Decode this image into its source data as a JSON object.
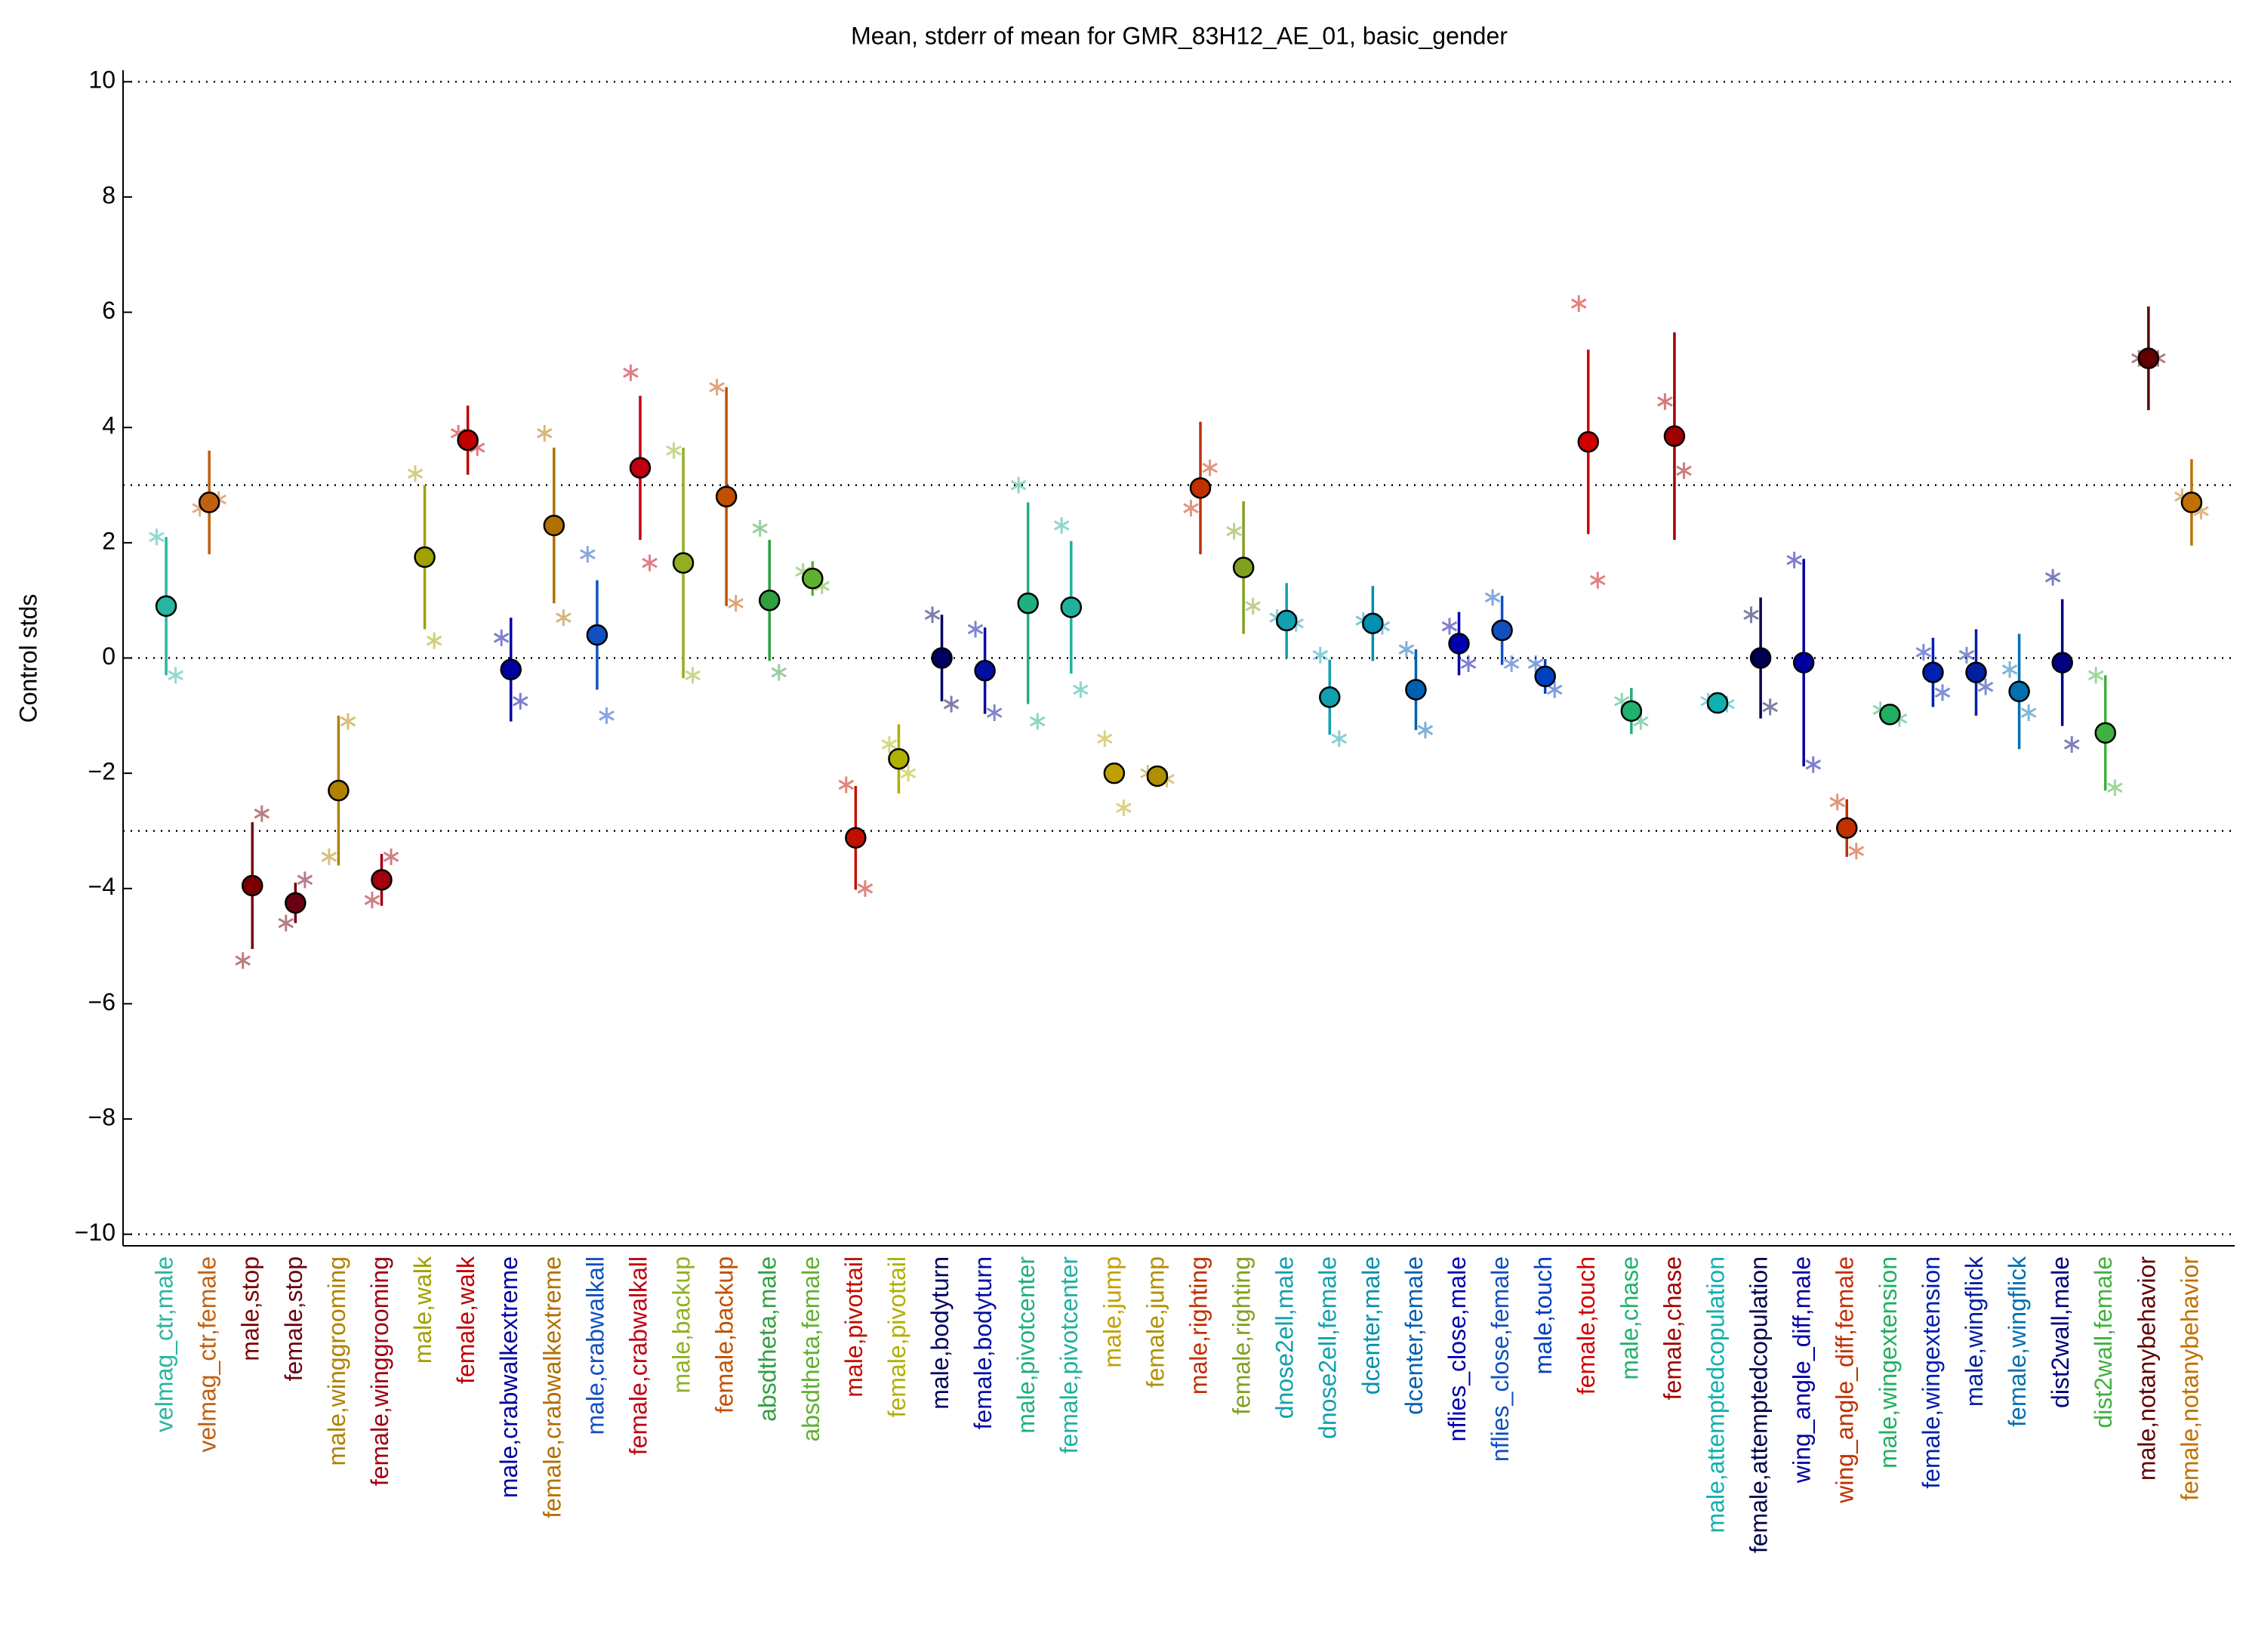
{
  "chart_data": {
    "type": "errorbar",
    "title": "Mean, stderr of mean for GMR_83H12_AE_01, basic_gender",
    "ylabel": "Control stds",
    "ylim": [
      -10.2,
      10.2
    ],
    "yticks": [
      {
        "value": -10,
        "label": "−10"
      },
      {
        "value": -8,
        "label": "−8"
      },
      {
        "value": -6,
        "label": "−6"
      },
      {
        "value": -4,
        "label": "−4"
      },
      {
        "value": -2,
        "label": "−2"
      },
      0,
      2,
      4,
      6,
      8,
      10
    ],
    "reference_lines": [
      -10,
      -3,
      0,
      3,
      10
    ],
    "categories": [
      "velmag_ctr,male",
      "velmag_ctr,female",
      "male,stop",
      "female,stop",
      "male,winggrooming",
      "female,winggrooming",
      "male,walk",
      "female,walk",
      "male,crabwalkextreme",
      "female,crabwalkextreme",
      "male,crabwalkall",
      "female,crabwalkall",
      "male,backup",
      "female,backup",
      "absdtheta,male",
      "absdtheta,female",
      "male,pivottail",
      "female,pivottail",
      "male,bodyturn",
      "female,bodyturn",
      "male,pivotcenter",
      "female,pivotcenter",
      "male,jump",
      "female,jump",
      "male,righting",
      "female,righting",
      "dnose2ell,male",
      "dnose2ell,female",
      "dcenter,male",
      "dcenter,female",
      "nflies_close,male",
      "nflies_close,female",
      "male,touch",
      "female,touch",
      "male,chase",
      "female,chase",
      "male,attemptedcopulation",
      "female,attemptedcopulation",
      "wing_angle_diff,male",
      "wing_angle_diff,female",
      "male,wingextension",
      "female,wingextension",
      "male,wingflick",
      "female,wingflick",
      "dist2wall,male",
      "dist2wall,female",
      "male,notanybehavior",
      "female,notanybehavior"
    ],
    "values": [
      0.9,
      2.7,
      -3.95,
      -4.25,
      -2.3,
      -3.85,
      1.75,
      3.78,
      -0.2,
      2.3,
      0.4,
      3.3,
      1.65,
      2.8,
      1.0,
      1.38,
      -3.12,
      -1.75,
      0.0,
      -0.22,
      0.95,
      0.88,
      -2.0,
      -2.05,
      2.95,
      1.57,
      0.65,
      -0.68,
      0.6,
      -0.55,
      0.25,
      0.48,
      -0.32,
      3.75,
      -0.92,
      3.85,
      -0.78,
      0.0,
      -0.08,
      -2.95,
      -0.98,
      -0.25,
      -0.25,
      -0.58,
      -0.08,
      -1.3,
      5.2,
      2.7
    ],
    "errors": [
      1.2,
      0.9,
      1.1,
      0.35,
      1.3,
      0.45,
      1.25,
      0.6,
      0.9,
      1.35,
      0.95,
      1.25,
      2.0,
      1.9,
      1.05,
      0.3,
      0.9,
      0.6,
      0.75,
      0.75,
      1.75,
      1.15,
      0.1,
      0.15,
      1.15,
      1.15,
      0.65,
      0.65,
      0.65,
      0.7,
      0.55,
      0.6,
      0.3,
      1.6,
      0.4,
      1.8,
      0.15,
      1.05,
      1.8,
      0.5,
      0.15,
      0.6,
      0.75,
      1.0,
      1.1,
      1.0,
      0.9,
      0.75
    ],
    "points": [
      [
        2.1,
        -0.3
      ],
      [
        2.6,
        2.75
      ],
      [
        -5.25,
        -2.7
      ],
      [
        -4.6,
        -3.85
      ],
      [
        -3.45,
        -1.1
      ],
      [
        -4.2,
        -3.45
      ],
      [
        3.2,
        0.3
      ],
      [
        3.9,
        3.65
      ],
      [
        0.35,
        -0.75
      ],
      [
        3.9,
        0.7
      ],
      [
        1.8,
        -1.0
      ],
      [
        4.95,
        1.65
      ],
      [
        3.6,
        -0.3
      ],
      [
        4.7,
        0.95
      ],
      [
        2.25,
        -0.25
      ],
      [
        1.5,
        1.25
      ],
      [
        -2.2,
        -4.0
      ],
      [
        -1.5,
        -2.0
      ],
      [
        0.75,
        -0.8
      ],
      [
        0.5,
        -0.95
      ],
      [
        3.0,
        -1.1
      ],
      [
        2.3,
        -0.55
      ],
      [
        -1.4,
        -2.6
      ],
      [
        -2.0,
        -2.1
      ],
      [
        2.6,
        3.3
      ],
      [
        2.2,
        0.9
      ],
      [
        0.7,
        0.6
      ],
      [
        0.05,
        -1.4
      ],
      [
        0.65,
        0.55
      ],
      [
        0.15,
        -1.25
      ],
      [
        0.55,
        -0.1
      ],
      [
        1.05,
        -0.1
      ],
      [
        -0.1,
        -0.55
      ],
      [
        6.15,
        1.35
      ],
      [
        -0.75,
        -1.1
      ],
      [
        4.45,
        3.25
      ],
      [
        -0.75,
        -0.8
      ],
      [
        0.75,
        -0.85
      ],
      [
        1.7,
        -1.85
      ],
      [
        -2.5,
        -3.35
      ],
      [
        -0.9,
        -1.05
      ],
      [
        0.1,
        -0.6
      ],
      [
        0.05,
        -0.5
      ],
      [
        -0.2,
        -0.95
      ],
      [
        1.4,
        -1.5
      ],
      [
        -0.3,
        -2.25
      ],
      [
        5.2,
        5.2
      ],
      [
        2.8,
        2.55
      ]
    ],
    "colors": [
      "#2ab5a0",
      "#c06010",
      "#7a0000",
      "#6a0010",
      "#b08000",
      "#a00010",
      "#a0a000",
      "#c00000",
      "#0000a0",
      "#b07000",
      "#1050c0",
      "#c00010",
      "#90b020",
      "#c05000",
      "#30a040",
      "#60b030",
      "#c01000",
      "#b0b000",
      "#000060",
      "#0010a0",
      "#20b080",
      "#20b0a0",
      "#c0a000",
      "#b09000",
      "#c03000",
      "#80a020",
      "#10a0b0",
      "#10a0b0",
      "#0090b0",
      "#0060b0",
      "#0000b0",
      "#1050c0",
      "#0040c0",
      "#d00000",
      "#20b070",
      "#a00000",
      "#10b0b0",
      "#000050",
      "#0000a0",
      "#c03000",
      "#20b060",
      "#0020b0",
      "#0020a0",
      "#0070b0",
      "#000080",
      "#40b040",
      "#600000",
      "#c07000"
    ]
  }
}
